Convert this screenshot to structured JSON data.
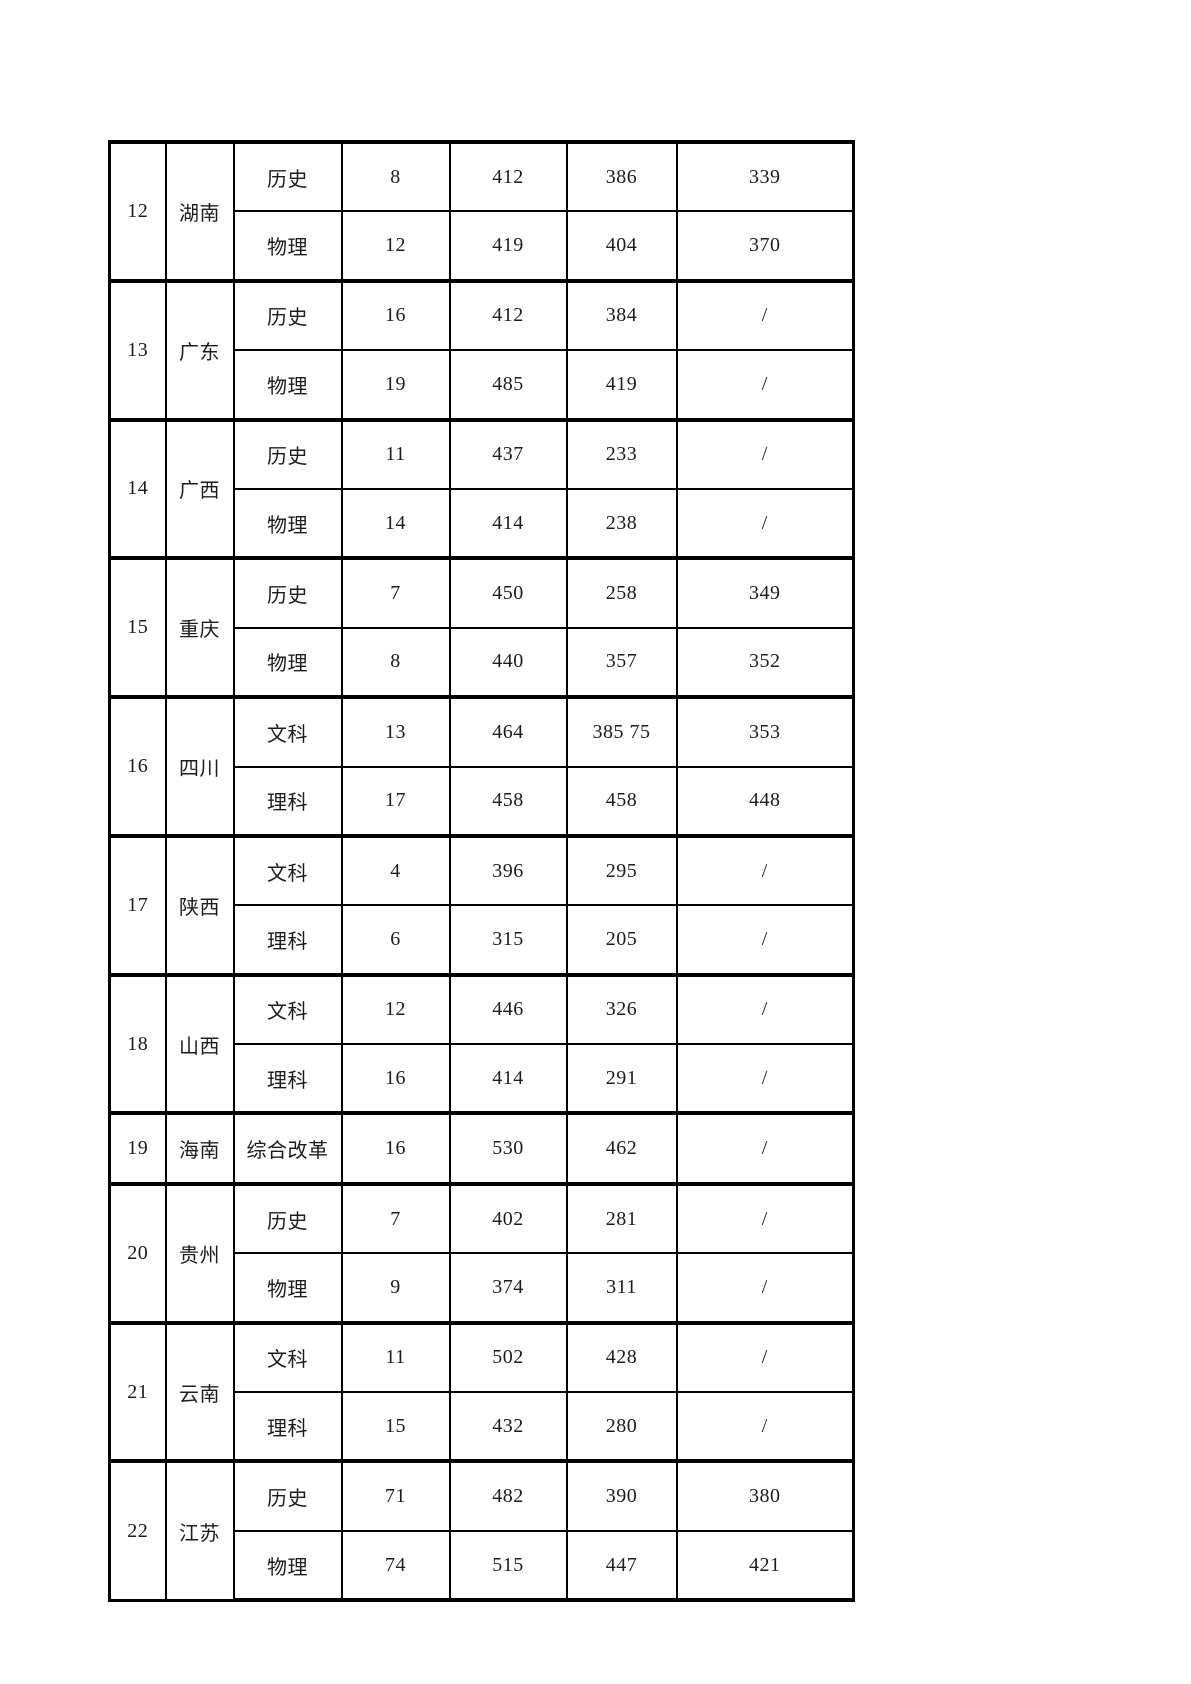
{
  "table": {
    "border_color": "#000000",
    "text_color": "#1c1c1c",
    "groups": [
      {
        "index": "12",
        "province": "湖南",
        "rows": [
          [
            "历史",
            "8",
            "412",
            "386",
            "339"
          ],
          [
            "物理",
            "12",
            "419",
            "404",
            "370"
          ]
        ]
      },
      {
        "index": "13",
        "province": "广东",
        "rows": [
          [
            "历史",
            "16",
            "412",
            "384",
            "/"
          ],
          [
            "物理",
            "19",
            "485",
            "419",
            "/"
          ]
        ]
      },
      {
        "index": "14",
        "province": "广西",
        "rows": [
          [
            "历史",
            "11",
            "437",
            "233",
            "/"
          ],
          [
            "物理",
            "14",
            "414",
            "238",
            "/"
          ]
        ]
      },
      {
        "index": "15",
        "province": "重庆",
        "rows": [
          [
            "历史",
            "7",
            "450",
            "258",
            "349"
          ],
          [
            "物理",
            "8",
            "440",
            "357",
            "352"
          ]
        ]
      },
      {
        "index": "16",
        "province": "四川",
        "rows": [
          [
            "文科",
            "13",
            "464",
            "385 75",
            "353"
          ],
          [
            "理科",
            "17",
            "458",
            "458",
            "448"
          ]
        ]
      },
      {
        "index": "17",
        "province": "陕西",
        "rows": [
          [
            "文科",
            "4",
            "396",
            "295",
            "/"
          ],
          [
            "理科",
            "6",
            "315",
            "205",
            "/"
          ]
        ]
      },
      {
        "index": "18",
        "province": "山西",
        "rows": [
          [
            "文科",
            "12",
            "446",
            "326",
            "/"
          ],
          [
            "理科",
            "16",
            "414",
            "291",
            "/"
          ]
        ]
      },
      {
        "index": "19",
        "province": "海南",
        "rows": [
          [
            "综合改革",
            "16",
            "530",
            "462",
            "/"
          ]
        ]
      },
      {
        "index": "20",
        "province": "贵州",
        "rows": [
          [
            "历史",
            "7",
            "402",
            "281",
            "/"
          ],
          [
            "物理",
            "9",
            "374",
            "311",
            "/"
          ]
        ]
      },
      {
        "index": "21",
        "province": "云南",
        "rows": [
          [
            "文科",
            "11",
            "502",
            "428",
            "/"
          ],
          [
            "理科",
            "15",
            "432",
            "280",
            "/"
          ]
        ]
      },
      {
        "index": "22",
        "province": "江苏",
        "rows": [
          [
            "历史",
            "71",
            "482",
            "390",
            "380"
          ],
          [
            "物理",
            "74",
            "515",
            "447",
            "421"
          ]
        ]
      }
    ]
  }
}
